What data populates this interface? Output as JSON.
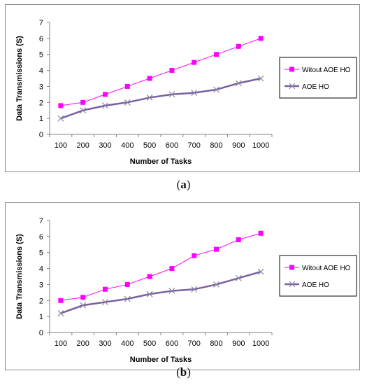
{
  "chart_data": [
    {
      "type": "line",
      "caption": "a",
      "xlabel": "Number of Tasks",
      "ylabel": "Data Transmissions (S)",
      "categories": [
        "100",
        "200",
        "300",
        "400",
        "500",
        "600",
        "700",
        "800",
        "900",
        "1000"
      ],
      "ylim": [
        0,
        7
      ],
      "yticks": [
        "0",
        "1",
        "2",
        "3",
        "4",
        "5",
        "6",
        "7"
      ],
      "legend_position": "right",
      "series": [
        {
          "name": "Witout AOE HO",
          "color": "#ff00ff",
          "marker": "square",
          "values": [
            1.8,
            2.0,
            2.5,
            3.0,
            3.5,
            4.0,
            4.5,
            5.0,
            5.5,
            6.0
          ]
        },
        {
          "name": "AOE HO",
          "color": "#7b5fa3",
          "marker": "x",
          "values": [
            1.0,
            1.5,
            1.8,
            2.0,
            2.3,
            2.5,
            2.6,
            2.8,
            3.2,
            3.5
          ]
        }
      ]
    },
    {
      "type": "line",
      "caption": "b",
      "xlabel": "Number of Tasks",
      "ylabel": "Data Transmissions (S)",
      "categories": [
        "100",
        "200",
        "300",
        "400",
        "500",
        "600",
        "700",
        "800",
        "900",
        "1000"
      ],
      "ylim": [
        0,
        7
      ],
      "yticks": [
        "0",
        "1",
        "2",
        "3",
        "4",
        "5",
        "6",
        "7"
      ],
      "legend_position": "right",
      "series": [
        {
          "name": "Witout AOE HO",
          "color": "#ff00ff",
          "marker": "square",
          "values": [
            2.0,
            2.2,
            2.7,
            3.0,
            3.5,
            4.0,
            4.8,
            5.2,
            5.8,
            6.2
          ]
        },
        {
          "name": "AOE HO",
          "color": "#7b5fa3",
          "marker": "x",
          "values": [
            1.2,
            1.7,
            1.9,
            2.1,
            2.4,
            2.6,
            2.7,
            3.0,
            3.4,
            3.8
          ]
        }
      ]
    }
  ],
  "captions": {
    "a_open": "(",
    "a_letter": "a",
    "a_close": ")",
    "b_open": "(",
    "b_letter": "b",
    "b_close": ")"
  }
}
